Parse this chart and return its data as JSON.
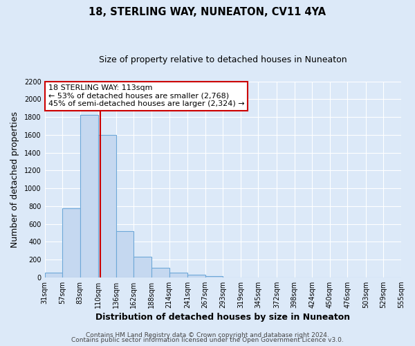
{
  "title_line1": "18, STERLING WAY, NUNEATON, CV11 4YA",
  "title_line2": "Size of property relative to detached houses in Nuneaton",
  "xlabel": "Distribution of detached houses by size in Nuneaton",
  "ylabel": "Number of detached properties",
  "bar_color": "#c5d8f0",
  "bar_edge_color": "#6ea8d8",
  "background_color": "#dce9f8",
  "plot_bg_color": "#dce9f8",
  "grid_color": "#ffffff",
  "bin_edges": [
    31,
    57,
    83,
    110,
    136,
    162,
    188,
    214,
    241,
    267,
    293,
    319,
    345,
    372,
    398,
    424,
    450,
    476,
    503,
    529,
    555
  ],
  "bar_heights": [
    50,
    775,
    1825,
    1600,
    515,
    230,
    105,
    55,
    30,
    15,
    0,
    0,
    0,
    0,
    0,
    0,
    0,
    0,
    0,
    0
  ],
  "tick_labels": [
    "31sqm",
    "57sqm",
    "83sqm",
    "110sqm",
    "136sqm",
    "162sqm",
    "188sqm",
    "214sqm",
    "241sqm",
    "267sqm",
    "293sqm",
    "319sqm",
    "345sqm",
    "372sqm",
    "398sqm",
    "424sqm",
    "450sqm",
    "476sqm",
    "503sqm",
    "529sqm",
    "555sqm"
  ],
  "property_size": 113,
  "red_line_color": "#cc0000",
  "annotation_title": "18 STERLING WAY: 113sqm",
  "annotation_line1": "← 53% of detached houses are smaller (2,768)",
  "annotation_line2": "45% of semi-detached houses are larger (2,324) →",
  "annotation_box_color": "#ffffff",
  "annotation_box_edge_color": "#cc0000",
  "ylim_max": 2200,
  "yticks": [
    0,
    200,
    400,
    600,
    800,
    1000,
    1200,
    1400,
    1600,
    1800,
    2000,
    2200
  ],
  "footer_line1": "Contains HM Land Registry data © Crown copyright and database right 2024.",
  "footer_line2": "Contains public sector information licensed under the Open Government Licence v3.0.",
  "title_fontsize": 10.5,
  "subtitle_fontsize": 9,
  "axis_label_fontsize": 9,
  "tick_fontsize": 7,
  "annotation_fontsize": 8,
  "footer_fontsize": 6.5
}
